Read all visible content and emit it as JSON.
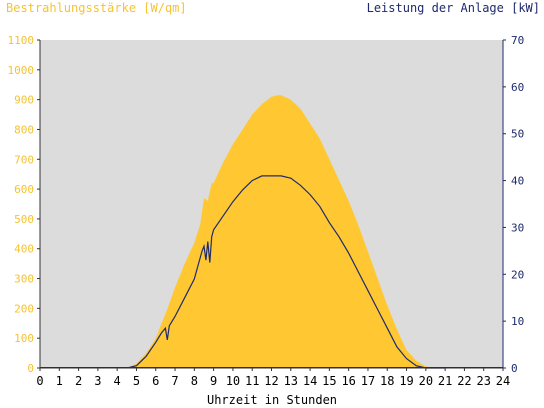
{
  "chart_data": {
    "type": "area",
    "left_axis_title": "Bestrahlungsstärke [W/qm]",
    "right_axis_title": "Leistung der Anlage [kW]",
    "xlabel": "Uhrzeit in Stunden",
    "x_ticks": [
      "0",
      "1",
      "2",
      "3",
      "4",
      "5",
      "6",
      "7",
      "8",
      "9",
      "10",
      "11",
      "12",
      "13",
      "14",
      "15",
      "16",
      "17",
      "18",
      "19",
      "20",
      "21",
      "22",
      "23",
      "24"
    ],
    "y_left_ticks": [
      "0",
      "100",
      "200",
      "300",
      "400",
      "500",
      "600",
      "700",
      "800",
      "900",
      "1000",
      "1100"
    ],
    "y_right_ticks": [
      "0",
      "10",
      "20",
      "30",
      "40",
      "50",
      "60",
      "70"
    ],
    "xlim": [
      0,
      24
    ],
    "ylim_left": [
      0,
      1100
    ],
    "ylim_right": [
      0,
      70
    ],
    "colors": {
      "irradiance_fill": "#ffc832",
      "power_line": "#1e2a6e",
      "plot_background": "#dcdcdc",
      "left_axis": "#f5c332",
      "right_axis": "#1e2a6e"
    },
    "series": [
      {
        "axis": "left",
        "style": "area",
        "x": [
          4.5,
          5.0,
          5.5,
          6.0,
          6.3,
          6.5,
          7.0,
          7.5,
          8.0,
          8.3,
          8.5,
          8.7,
          8.9,
          9.0,
          9.5,
          10.0,
          10.5,
          11.0,
          11.5,
          12.0,
          12.3,
          12.5,
          13.0,
          13.5,
          14.0,
          14.5,
          15.0,
          15.5,
          16.0,
          16.5,
          17.0,
          17.5,
          18.0,
          18.5,
          19.0,
          19.5,
          20.0,
          20.5,
          20.8
        ],
        "values": [
          0,
          15,
          50,
          100,
          150,
          180,
          270,
          350,
          420,
          480,
          570,
          560,
          620,
          620,
          690,
          750,
          800,
          850,
          885,
          910,
          915,
          915,
          900,
          870,
          820,
          770,
          700,
          630,
          560,
          480,
          390,
          300,
          210,
          130,
          60,
          25,
          5,
          0,
          0
        ]
      },
      {
        "axis": "right",
        "style": "line",
        "x": [
          4.5,
          5.0,
          5.5,
          6.0,
          6.3,
          6.5,
          6.6,
          6.7,
          7.0,
          7.5,
          8.0,
          8.2,
          8.4,
          8.5,
          8.6,
          8.7,
          8.8,
          8.9,
          9.0,
          9.5,
          10.0,
          10.5,
          11.0,
          11.5,
          12.0,
          12.5,
          13.0,
          13.5,
          14.0,
          14.5,
          15.0,
          15.5,
          16.0,
          16.5,
          17.0,
          17.5,
          18.0,
          18.5,
          19.0,
          19.5,
          20.0,
          20.5,
          21.0
        ],
        "values": [
          0,
          0.5,
          2.5,
          5.5,
          7.5,
          8.5,
          6,
          9,
          11,
          15,
          19,
          22,
          25,
          26,
          23,
          27,
          22.5,
          28,
          29.5,
          32.5,
          35.5,
          38,
          40,
          41,
          41,
          41,
          40.5,
          39,
          37,
          34.5,
          31,
          28,
          24.5,
          20.5,
          16.5,
          12.5,
          8.5,
          4.5,
          2,
          0.5,
          0,
          0,
          0
        ]
      }
    ]
  }
}
